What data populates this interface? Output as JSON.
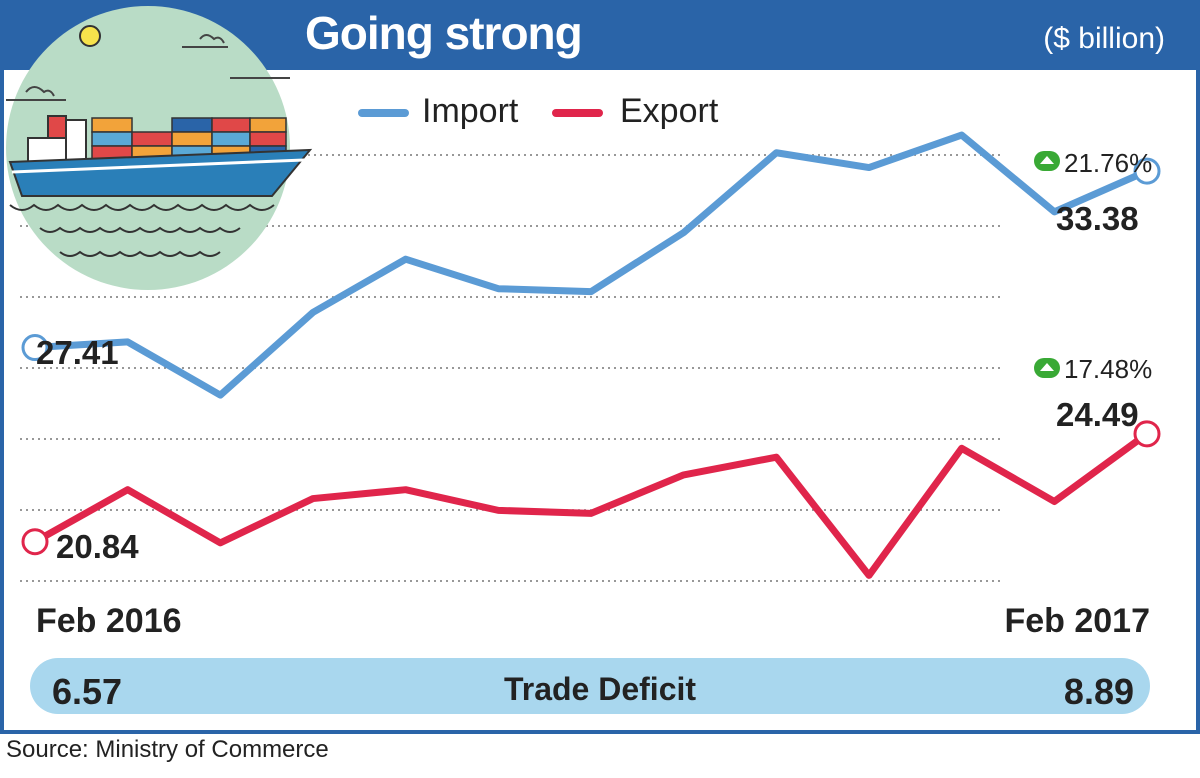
{
  "header": {
    "title": "Going strong",
    "unit": "($ billion)"
  },
  "legend": [
    {
      "label": "Import",
      "color": "#5b9bd5"
    },
    {
      "label": "Export",
      "color": "#e0254b"
    }
  ],
  "annotations": {
    "import_start": "27.41",
    "import_end": "33.38",
    "import_growth": "21.76%",
    "export_start": "20.84",
    "export_end": "24.49",
    "export_growth": "17.48%",
    "growth_icon": "up-arrow-icon"
  },
  "chart_data": {
    "type": "line",
    "x": [
      "Feb 2016",
      "",
      "",
      "",
      "",
      "",
      "",
      "",
      "",
      "",
      "",
      "",
      "Feb 2017"
    ],
    "xtick_labels": [
      "Feb 2016",
      "Feb 2017"
    ],
    "series": [
      {
        "name": "Import",
        "color": "#5b9bd5",
        "values": [
          27.41,
          27.6,
          25.8,
          28.6,
          30.4,
          29.4,
          29.3,
          31.3,
          34.0,
          33.5,
          34.6,
          32.0,
          33.38
        ]
      },
      {
        "name": "Export",
        "color": "#e0254b",
        "values": [
          20.84,
          22.6,
          20.8,
          22.3,
          22.6,
          21.9,
          21.8,
          23.1,
          23.7,
          19.7,
          24.0,
          22.2,
          24.49
        ]
      }
    ],
    "ylim": [
      18.8,
      36.8
    ],
    "grid": true,
    "legend_position": "top"
  },
  "deficit": {
    "label": "Trade Deficit",
    "start": "6.57",
    "end": "8.89"
  },
  "source": "Source: Ministry of Commerce",
  "colors": {
    "banner": "#2a64a8",
    "deficit_bar": "#a9d7ee",
    "growth_badge": "#39a935",
    "illustration_bg": "#b9dcc6"
  }
}
